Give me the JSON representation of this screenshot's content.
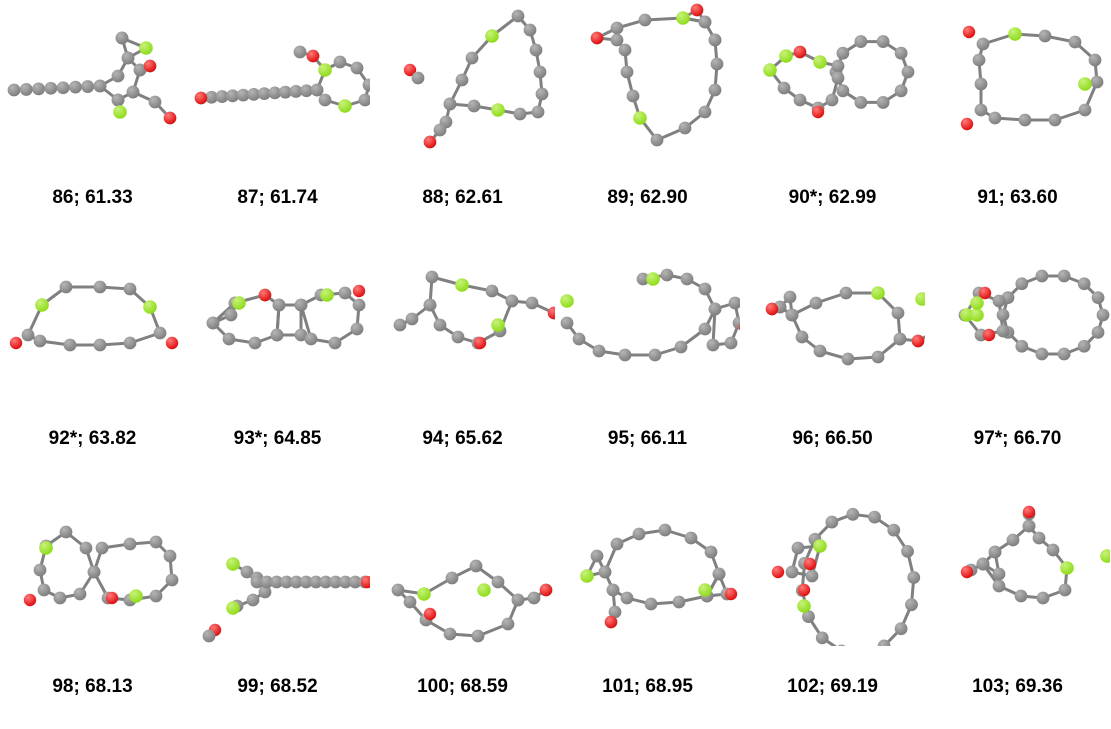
{
  "colors": {
    "carbon": "#7f7f7f",
    "carbon_highlight": "#b5b5b5",
    "green_atom": "#8fdc1a",
    "green_highlight": "#c8f27a",
    "oxygen": "#e00f0f",
    "oxygen_highlight": "#ff7a7a",
    "bond": "#808080",
    "label": "#000000"
  },
  "structures": [
    {
      "id": "s86",
      "label": "86; 61.33",
      "shape": "chain-bicyclic-fused",
      "atoms": [
        "C",
        "C",
        "C",
        "C",
        "C",
        "C",
        "C",
        "C",
        "C",
        "C",
        "C",
        "C",
        "C",
        "C",
        "O",
        "O",
        "green",
        "green"
      ]
    },
    {
      "id": "s87",
      "label": "87; 61.74",
      "shape": "long-chain-ring",
      "atoms": [
        "O",
        "C",
        "C",
        "C",
        "C",
        "C",
        "C",
        "C",
        "C",
        "C",
        "C",
        "C",
        "C",
        "C",
        "C",
        "C",
        "C",
        "O",
        "green",
        "green"
      ]
    },
    {
      "id": "s88",
      "label": "88; 62.61",
      "shape": "large-ring-tail",
      "atoms": [
        "O",
        "O",
        "C",
        "C",
        "C",
        "C",
        "C",
        "C",
        "C",
        "C",
        "C",
        "C",
        "C",
        "C",
        "C",
        "C",
        "C",
        "C",
        "green",
        "green"
      ]
    },
    {
      "id": "s89",
      "label": "89; 62.90",
      "shape": "macrocycle-epoxide",
      "atoms": [
        "O",
        "O",
        "C",
        "C",
        "C",
        "C",
        "C",
        "C",
        "C",
        "C",
        "C",
        "C",
        "C",
        "C",
        "C",
        "C",
        "C",
        "C",
        "green",
        "green"
      ]
    },
    {
      "id": "s90",
      "label": "90*; 62.99",
      "shape": "bicyclic-ring",
      "atoms": [
        "O",
        "O",
        "C",
        "C",
        "C",
        "C",
        "C",
        "C",
        "C",
        "C",
        "C",
        "C",
        "C",
        "C",
        "green",
        "green",
        "green"
      ]
    },
    {
      "id": "s91",
      "label": "91; 63.60",
      "shape": "macrocycle",
      "atoms": [
        "O",
        "O",
        "C",
        "C",
        "C",
        "C",
        "C",
        "C",
        "C",
        "C",
        "C",
        "C",
        "C",
        "C",
        "C",
        "C",
        "green",
        "green"
      ]
    },
    {
      "id": "s92",
      "label": "92*; 63.82",
      "shape": "dome-ring",
      "atoms": [
        "O",
        "O",
        "C",
        "C",
        "C",
        "C",
        "C",
        "C",
        "C",
        "C",
        "C",
        "C",
        "C",
        "C",
        "C",
        "C",
        "green",
        "green"
      ]
    },
    {
      "id": "s93",
      "label": "93*; 64.85",
      "shape": "polycyclic",
      "atoms": [
        "O",
        "O",
        "C",
        "C",
        "C",
        "C",
        "C",
        "C",
        "C",
        "C",
        "C",
        "C",
        "C",
        "C",
        "green",
        "green",
        "green"
      ]
    },
    {
      "id": "s94",
      "label": "94; 65.62",
      "shape": "ring-with-tail",
      "atoms": [
        "O",
        "O",
        "C",
        "C",
        "C",
        "C",
        "C",
        "C",
        "C",
        "C",
        "C",
        "C",
        "C",
        "green",
        "green"
      ]
    },
    {
      "id": "s95",
      "label": "95; 66.11",
      "shape": "chain-lactone",
      "atoms": [
        "O",
        "O",
        "C",
        "C",
        "C",
        "C",
        "C",
        "C",
        "C",
        "C",
        "C",
        "C",
        "C",
        "C",
        "C",
        "C",
        "C",
        "green",
        "green"
      ]
    },
    {
      "id": "s96",
      "label": "96; 66.50",
      "shape": "ring-cyclopropane",
      "atoms": [
        "O",
        "O",
        "C",
        "C",
        "C",
        "C",
        "C",
        "C",
        "C",
        "C",
        "C",
        "C",
        "C",
        "C",
        "C",
        "C",
        "green",
        "green"
      ]
    },
    {
      "id": "s97",
      "label": "97*; 66.70",
      "shape": "fused-large-ring",
      "atoms": [
        "O",
        "O",
        "C",
        "C",
        "C",
        "C",
        "C",
        "C",
        "C",
        "C",
        "C",
        "C",
        "C",
        "C",
        "C",
        "green",
        "green",
        "green"
      ]
    },
    {
      "id": "s98",
      "label": "98; 68.13",
      "shape": "bicyclic",
      "atoms": [
        "O",
        "O",
        "C",
        "C",
        "C",
        "C",
        "C",
        "C",
        "C",
        "C",
        "C",
        "C",
        "C",
        "C",
        "green",
        "green"
      ]
    },
    {
      "id": "s99",
      "label": "99; 68.52",
      "shape": "chain-fork",
      "atoms": [
        "O",
        "O",
        "C",
        "C",
        "C",
        "C",
        "C",
        "C",
        "C",
        "C",
        "C",
        "C",
        "C",
        "C",
        "green",
        "green"
      ]
    },
    {
      "id": "s100",
      "label": "100; 68.59",
      "shape": "twisted-ring",
      "atoms": [
        "O",
        "O",
        "C",
        "C",
        "C",
        "C",
        "C",
        "C",
        "C",
        "C",
        "C",
        "C",
        "C",
        "C",
        "C",
        "green",
        "green"
      ]
    },
    {
      "id": "s101",
      "label": "101; 68.95",
      "shape": "large-ring-epoxide",
      "atoms": [
        "O",
        "O",
        "C",
        "C",
        "C",
        "C",
        "C",
        "C",
        "C",
        "C",
        "C",
        "C",
        "C",
        "C",
        "C",
        "C",
        "C",
        "green",
        "green",
        "green"
      ]
    },
    {
      "id": "s102",
      "label": "102; 69.19",
      "shape": "macrocycle-bridged",
      "atoms": [
        "O",
        "O",
        "C",
        "C",
        "C",
        "C",
        "C",
        "C",
        "C",
        "C",
        "C",
        "C",
        "C",
        "C",
        "C",
        "C",
        "C",
        "C",
        "C",
        "green",
        "green"
      ]
    },
    {
      "id": "s103",
      "label": "103; 69.36",
      "shape": "triangle-ring",
      "atoms": [
        "O",
        "O",
        "C",
        "C",
        "C",
        "C",
        "C",
        "C",
        "C",
        "C",
        "C",
        "C",
        "C",
        "green",
        "green"
      ]
    }
  ]
}
